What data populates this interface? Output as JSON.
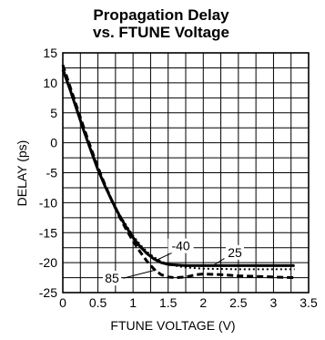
{
  "chart_data": {
    "type": "line",
    "title": [
      "Propagation Delay",
      "vs. FTUNE Voltage"
    ],
    "xlabel": "FTUNE VOLTAGE (V)",
    "ylabel": "DELAY (ps)",
    "xlim": [
      0,
      3.5
    ],
    "ylim": [
      -25,
      15
    ],
    "xticks": [
      0,
      0.5,
      1,
      1.5,
      2,
      2.5,
      3,
      3.5
    ],
    "xtick_labels": [
      "0",
      "0.5",
      "1",
      "1.5",
      "2",
      "2.5",
      "3",
      "3.5"
    ],
    "yticks": [
      15,
      10,
      5,
      0,
      -5,
      -10,
      -15,
      -20,
      -25
    ],
    "ytick_labels": [
      "15",
      "10",
      "5",
      "0",
      "-5",
      "-10",
      "-15",
      "-20",
      "-25"
    ],
    "grid": true,
    "series": [
      {
        "name": "25",
        "style": "solid",
        "x": [
          0,
          0.1,
          0.2,
          0.3,
          0.4,
          0.5,
          0.6,
          0.7,
          0.8,
          0.9,
          1.0,
          1.1,
          1.2,
          1.3,
          1.4,
          1.5,
          1.75,
          2.0,
          2.5,
          3.0,
          3.3
        ],
        "y": [
          12.2,
          9.0,
          5.5,
          2.0,
          -1.3,
          -4.5,
          -7.2,
          -9.7,
          -12.0,
          -14.0,
          -15.8,
          -17.3,
          -18.5,
          -19.4,
          -20.0,
          -20.3,
          -20.5,
          -20.5,
          -20.5,
          -20.5,
          -20.5
        ]
      },
      {
        "name": "-40",
        "style": "dotted",
        "x": [
          0,
          0.1,
          0.2,
          0.3,
          0.4,
          0.5,
          0.6,
          0.7,
          0.8,
          0.9,
          1.0,
          1.1,
          1.2,
          1.3,
          1.4,
          1.5,
          1.75,
          2.0,
          2.5,
          3.0,
          3.3
        ],
        "y": [
          12.6,
          9.3,
          5.8,
          2.2,
          -1.1,
          -4.3,
          -7.0,
          -9.5,
          -11.8,
          -13.7,
          -15.5,
          -17.0,
          -18.2,
          -19.1,
          -19.8,
          -20.3,
          -20.8,
          -21.0,
          -21.1,
          -21.1,
          -21.1
        ]
      },
      {
        "name": "85",
        "style": "dashed",
        "x": [
          0,
          0.1,
          0.2,
          0.3,
          0.4,
          0.5,
          0.6,
          0.7,
          0.8,
          0.9,
          1.0,
          1.1,
          1.2,
          1.3,
          1.4,
          1.5,
          1.6,
          1.75,
          1.9,
          2.0,
          2.25,
          2.5,
          3.0,
          3.3
        ],
        "y": [
          13.0,
          9.5,
          6.0,
          2.5,
          -0.9,
          -4.1,
          -7.0,
          -9.7,
          -12.2,
          -14.4,
          -16.4,
          -18.2,
          -19.8,
          -21.1,
          -22.0,
          -22.4,
          -22.5,
          -22.4,
          -22.0,
          -21.9,
          -22.0,
          -22.2,
          -22.4,
          -22.5
        ]
      }
    ],
    "annotations": [
      {
        "text": "-40",
        "series": "-40"
      },
      {
        "text": "25",
        "series": "25"
      },
      {
        "text": "85",
        "series": "85"
      }
    ]
  }
}
